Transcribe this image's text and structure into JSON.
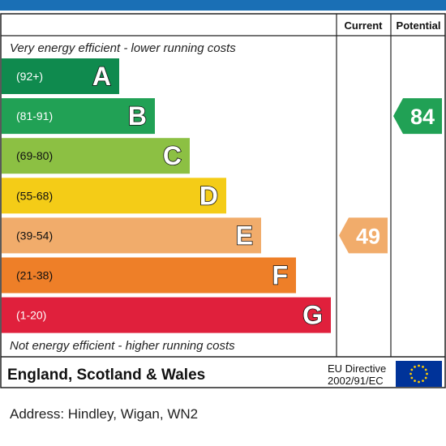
{
  "chart_data": {
    "type": "bar",
    "columns": {
      "current": "Current",
      "potential": "Potential"
    },
    "top_caption": "Very energy efficient - lower running costs",
    "bottom_caption": "Not energy efficient - higher running costs",
    "bands": [
      {
        "letter": "A",
        "range": "(92+)",
        "min": 92,
        "max": null,
        "color": "#0f8a4e"
      },
      {
        "letter": "B",
        "range": "(81-91)",
        "min": 81,
        "max": 91,
        "color": "#21a155"
      },
      {
        "letter": "C",
        "range": "(69-80)",
        "min": 69,
        "max": 80,
        "color": "#8cc043"
      },
      {
        "letter": "D",
        "range": "(55-68)",
        "min": 55,
        "max": 68,
        "color": "#f4cc17"
      },
      {
        "letter": "E",
        "range": "(39-54)",
        "min": 39,
        "max": 54,
        "color": "#f1ac6b"
      },
      {
        "letter": "F",
        "range": "(21-38)",
        "min": 21,
        "max": 38,
        "color": "#ee7f28"
      },
      {
        "letter": "G",
        "range": "(1-20)",
        "min": 1,
        "max": 20,
        "color": "#e0203c"
      }
    ],
    "current": {
      "value": 49,
      "band": "E",
      "color": "#f1ac6b"
    },
    "potential": {
      "value": 84,
      "band": "B",
      "color": "#21a155"
    }
  },
  "footer": {
    "region": "England, Scotland & Wales",
    "directive_line1": "EU Directive",
    "directive_line2": "2002/91/EC",
    "flag_icon": "eu-flag-icon",
    "flag_color": "#003399",
    "star_color": "#ffcc00"
  },
  "address": "Address: Hindley, Wigan, WN2"
}
